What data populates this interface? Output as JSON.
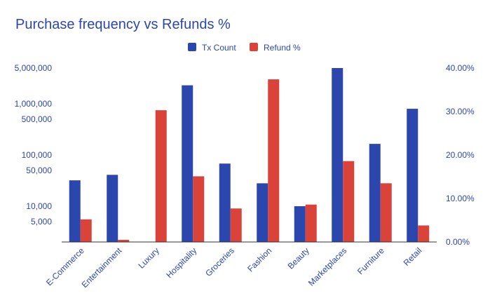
{
  "chart_data": {
    "type": "bar",
    "title": "Purchase frequency vs Refunds %",
    "categories": [
      "E-Commerce",
      "Entertainment",
      "Luxury",
      "Hospitality",
      "Groceries",
      "Fashion",
      "Beauty",
      "Marketplaces",
      "Furniture",
      "Retail"
    ],
    "series": [
      {
        "name": "Tx Count",
        "axis": "left",
        "color": "#2b46ad",
        "values": [
          32000,
          41000,
          null,
          2300000,
          68000,
          28000,
          10000,
          5000000,
          165000,
          800000
        ]
      },
      {
        "name": "Refund %",
        "axis": "right",
        "color": "#d9433a",
        "values": [
          5.2,
          0.5,
          30.3,
          15.1,
          7.7,
          37.4,
          8.6,
          18.6,
          13.5,
          3.8
        ]
      }
    ],
    "left_axis": {
      "scale": "log",
      "ylim": [
        2000,
        5000000
      ],
      "ticks": [
        5000,
        10000,
        50000,
        100000,
        500000,
        1000000,
        5000000
      ],
      "tick_labels": [
        "5,000",
        "10,000",
        "50,000",
        "100,000",
        "500,000",
        "1,000,000",
        "5,000,000"
      ]
    },
    "right_axis": {
      "scale": "linear",
      "ylim": [
        0,
        40
      ],
      "ticks": [
        0,
        10,
        20,
        30,
        40
      ],
      "tick_labels": [
        "0.00%",
        "10.00%",
        "20.00%",
        "30.00%",
        "40.00%"
      ]
    },
    "legend": {
      "position": "top"
    },
    "grid": false,
    "colors": {
      "title": "#2b46ad",
      "axis_text": "#2b46ad",
      "baseline": "#333333"
    }
  }
}
